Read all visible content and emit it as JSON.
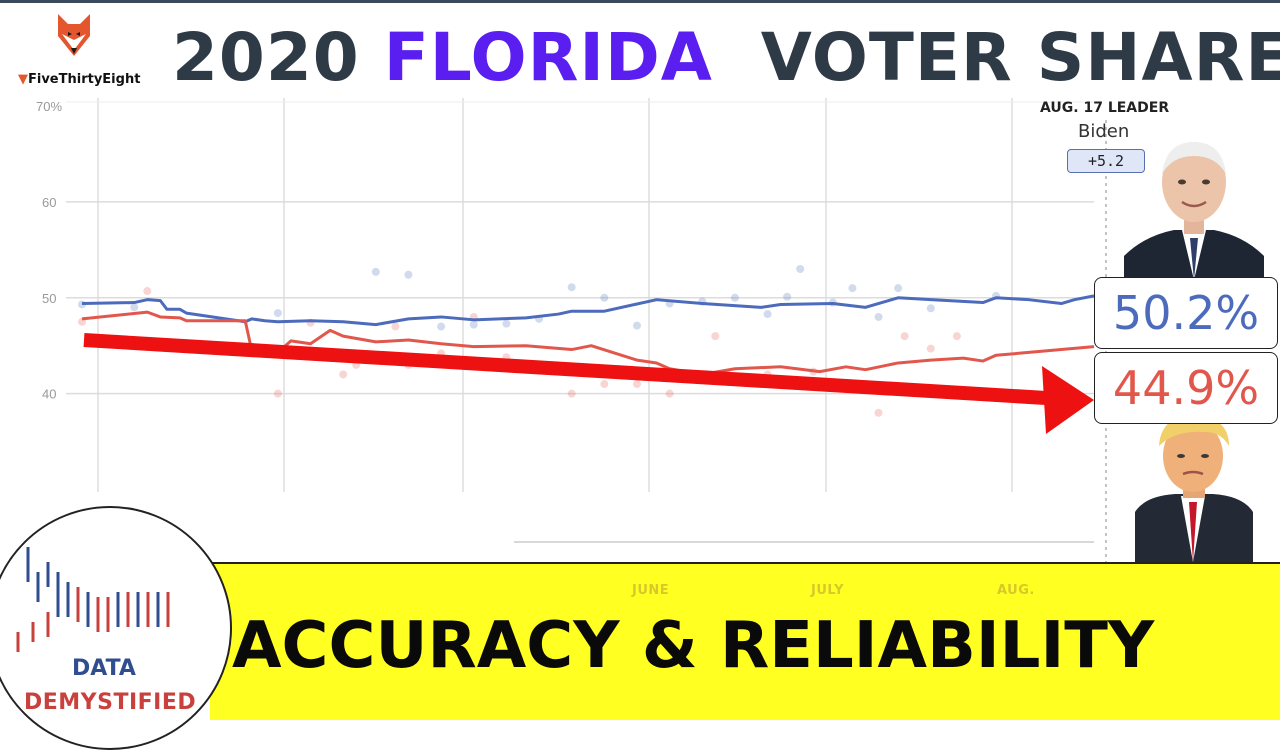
{
  "brand": {
    "name": "FiveThirtyEight",
    "icon": "fox-logo-icon"
  },
  "title": {
    "part1": "2020",
    "highlight": "FLORIDA",
    "part2": "VOTER SHARE"
  },
  "leader": {
    "label": "AUG. 17 LEADER",
    "name": "Biden",
    "margin": "+5.2"
  },
  "biden_pct": "50.2%",
  "trump_pct": "44.9%",
  "months": [
    "JUNE",
    "JULY",
    "AUG."
  ],
  "banner": {
    "text": "ACCURACY & RELIABILITY"
  },
  "badge": {
    "line1": "DATA",
    "line2": "DEMYSTIFIED"
  },
  "colors": {
    "biden": "#4d6bbc",
    "trump": "#e2574c",
    "arrow": "#ee1111",
    "title_highlight": "#5a1ef0",
    "banner": "#ffff22"
  },
  "chart_data": {
    "type": "line",
    "ylim": [
      36,
      70
    ],
    "y_ticks": [
      40,
      50,
      60
    ],
    "y_top_label": "70%",
    "x_range": [
      0,
      155
    ],
    "series": [
      {
        "name": "Biden",
        "color": "#4d6bbc",
        "x": [
          0,
          8,
          10,
          12,
          13,
          15,
          16,
          25,
          26,
          28,
          30,
          35,
          40,
          45,
          50,
          55,
          60,
          68,
          73,
          75,
          80,
          88,
          95,
          104,
          107,
          115,
          120,
          125,
          130,
          138,
          140,
          145,
          150,
          152,
          155
        ],
        "values": [
          49.4,
          49.5,
          49.8,
          49.7,
          48.8,
          48.8,
          48.4,
          47.5,
          47.8,
          47.6,
          47.5,
          47.6,
          47.5,
          47.2,
          47.8,
          48.0,
          47.7,
          47.9,
          48.3,
          48.6,
          48.6,
          49.8,
          49.4,
          49.0,
          49.3,
          49.4,
          49.0,
          50.0,
          49.8,
          49.5,
          50.0,
          49.8,
          49.4,
          49.8,
          50.2
        ]
      },
      {
        "name": "Trump",
        "color": "#e2574c",
        "x": [
          0,
          10,
          12,
          15,
          16,
          25,
          26,
          30,
          32,
          35,
          38,
          40,
          45,
          50,
          55,
          60,
          68,
          75,
          78,
          85,
          88,
          90,
          95,
          100,
          107,
          113,
          117,
          120,
          125,
          130,
          135,
          138,
          140,
          145,
          150,
          155
        ],
        "values": [
          47.8,
          48.5,
          48.0,
          47.9,
          47.6,
          47.6,
          44.5,
          44.3,
          45.5,
          45.2,
          46.6,
          46.0,
          45.4,
          45.6,
          45.2,
          44.9,
          45.0,
          44.6,
          45.0,
          43.5,
          43.2,
          42.6,
          42.0,
          42.6,
          42.8,
          42.3,
          42.8,
          42.5,
          43.2,
          43.5,
          43.7,
          43.4,
          44.0,
          44.3,
          44.6,
          44.9
        ]
      }
    ],
    "polls_biden": [
      {
        "x": 0,
        "y": 49.3
      },
      {
        "x": 8,
        "y": 49.0
      },
      {
        "x": 12,
        "y": 45.0
      },
      {
        "x": 15,
        "y": 45.3
      },
      {
        "x": 30,
        "y": 48.4
      },
      {
        "x": 45,
        "y": 52.7
      },
      {
        "x": 50,
        "y": 52.4
      },
      {
        "x": 55,
        "y": 47.0
      },
      {
        "x": 60,
        "y": 47.2
      },
      {
        "x": 65,
        "y": 47.3
      },
      {
        "x": 70,
        "y": 47.8
      },
      {
        "x": 75,
        "y": 51.1
      },
      {
        "x": 80,
        "y": 50.0
      },
      {
        "x": 85,
        "y": 47.1
      },
      {
        "x": 90,
        "y": 49.4
      },
      {
        "x": 95,
        "y": 49.6
      },
      {
        "x": 100,
        "y": 50.0
      },
      {
        "x": 105,
        "y": 48.3
      },
      {
        "x": 108,
        "y": 50.1
      },
      {
        "x": 110,
        "y": 53.0
      },
      {
        "x": 115,
        "y": 49.5
      },
      {
        "x": 118,
        "y": 51.0
      },
      {
        "x": 122,
        "y": 48.0
      },
      {
        "x": 125,
        "y": 51.0
      },
      {
        "x": 130,
        "y": 48.9
      },
      {
        "x": 140,
        "y": 50.2
      }
    ],
    "polls_trump": [
      {
        "x": 0,
        "y": 47.5
      },
      {
        "x": 10,
        "y": 50.7
      },
      {
        "x": 15,
        "y": 44.9
      },
      {
        "x": 30,
        "y": 40.0
      },
      {
        "x": 35,
        "y": 47.4
      },
      {
        "x": 40,
        "y": 42.0
      },
      {
        "x": 42,
        "y": 43.0
      },
      {
        "x": 48,
        "y": 47.0
      },
      {
        "x": 50,
        "y": 43.0
      },
      {
        "x": 55,
        "y": 44.2
      },
      {
        "x": 60,
        "y": 48.0
      },
      {
        "x": 65,
        "y": 43.8
      },
      {
        "x": 75,
        "y": 40.0
      },
      {
        "x": 80,
        "y": 41.0
      },
      {
        "x": 85,
        "y": 41.0
      },
      {
        "x": 90,
        "y": 40.0
      },
      {
        "x": 97,
        "y": 46.0
      },
      {
        "x": 105,
        "y": 42.0
      },
      {
        "x": 112,
        "y": 42.3
      },
      {
        "x": 118,
        "y": 41.0
      },
      {
        "x": 122,
        "y": 38.0
      },
      {
        "x": 126,
        "y": 46.0
      },
      {
        "x": 130,
        "y": 44.7
      },
      {
        "x": 134,
        "y": 46.0
      }
    ]
  }
}
